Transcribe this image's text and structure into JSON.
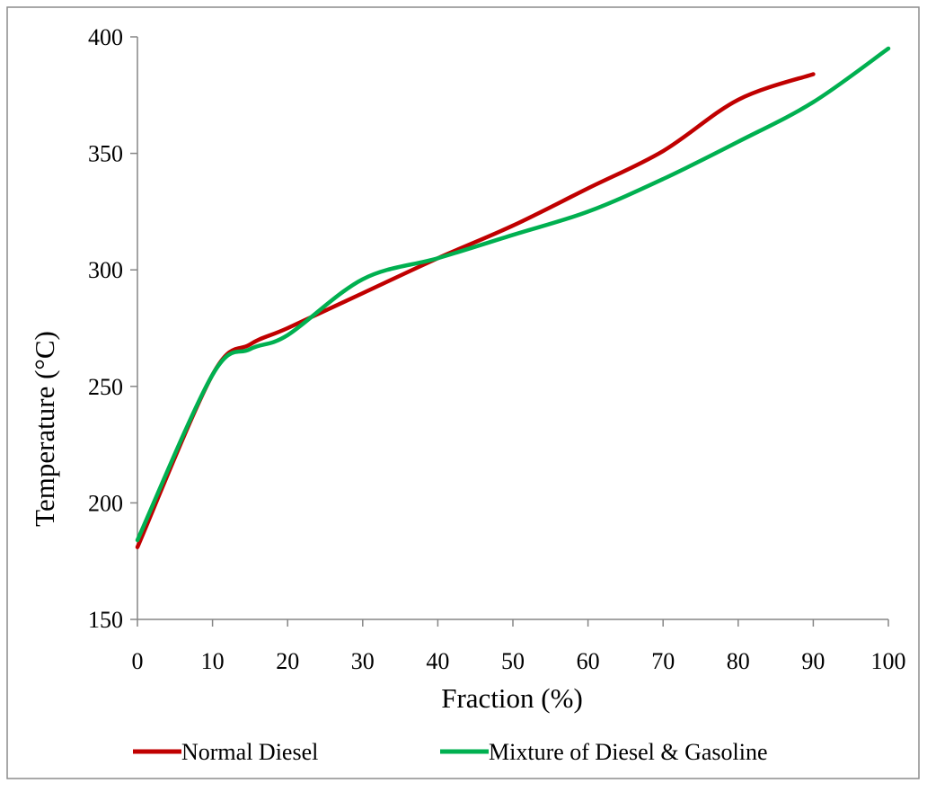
{
  "chart_data": {
    "type": "line",
    "title": "",
    "xlabel": "Fraction (%)",
    "ylabel": "Temperature (°C)",
    "xlim": [
      0,
      100
    ],
    "ylim": [
      150,
      400
    ],
    "x_ticks": [
      0,
      10,
      20,
      30,
      40,
      50,
      60,
      70,
      80,
      90,
      100
    ],
    "y_ticks": [
      150,
      200,
      250,
      300,
      350,
      400
    ],
    "grid": false,
    "legend_position": "bottom",
    "series": [
      {
        "name": "Normal Diesel",
        "color": "#C00000",
        "x": [
          0,
          10,
          15,
          20,
          30,
          40,
          50,
          60,
          70,
          80,
          90
        ],
        "y": [
          181,
          255,
          268,
          275,
          290,
          305,
          319,
          335,
          351,
          373,
          384
        ]
      },
      {
        "name": "Mixture of Diesel & Gasoline",
        "color": "#00B050",
        "x": [
          0,
          10,
          15,
          20,
          30,
          40,
          50,
          60,
          70,
          80,
          90,
          100
        ],
        "y": [
          184,
          255,
          266,
          272,
          296,
          305,
          315,
          325,
          339,
          355,
          372,
          395
        ]
      }
    ]
  }
}
